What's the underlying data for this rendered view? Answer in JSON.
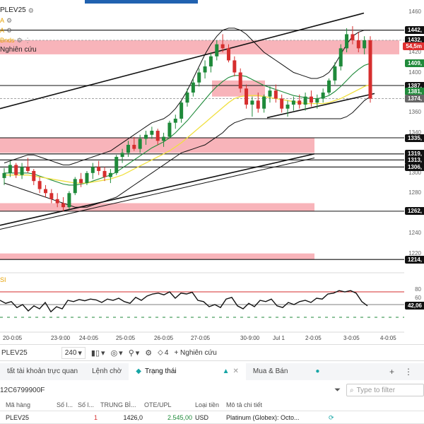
{
  "legend": {
    "symbol_line": "PLEV25",
    "line2": "A",
    "line3": "A",
    "line4": "Bnds",
    "research": "Nghiên cứu"
  },
  "price_axis": {
    "ticks": [
      "1460",
      "1440",
      "1420",
      "1400",
      "1380",
      "1360",
      "1340",
      "1320",
      "1300",
      "1280",
      "1260",
      "1240",
      "1220"
    ],
    "tags": [
      {
        "text": "1442,",
        "color": "#111111"
      },
      {
        "text": "1432,",
        "color": "#111111"
      },
      {
        "text": "54,5m",
        "color": "#e03030"
      },
      {
        "text": "1409,",
        "color": "#1f8a3a"
      },
      {
        "text": "1387,",
        "color": "#111111"
      },
      {
        "text": "1381,",
        "color": "#1f8a3a"
      },
      {
        "text": "1374,",
        "color": "#666666"
      },
      {
        "text": "1335,",
        "color": "#111111"
      },
      {
        "text": "1319,",
        "color": "#111111"
      },
      {
        "text": "1313,",
        "color": "#111111"
      },
      {
        "text": "1306,",
        "color": "#111111"
      },
      {
        "text": "1262,",
        "color": "#111111"
      },
      {
        "text": "1214,",
        "color": "#111111"
      }
    ]
  },
  "oscillator": {
    "label": "SI",
    "ticks": [
      "80",
      "60",
      "40"
    ],
    "current_tag": "42,06",
    "upper_level": 75,
    "lower_level": 25,
    "values": [
      55,
      48,
      52,
      38,
      45,
      30,
      42,
      35,
      50,
      28,
      40,
      35,
      55,
      52,
      57,
      54,
      58,
      56,
      50,
      58,
      55,
      60,
      52,
      48,
      62,
      55,
      65,
      70,
      72,
      68,
      75,
      60,
      72,
      70,
      74,
      55,
      52,
      40,
      45,
      38,
      58,
      62,
      42,
      35,
      48,
      40,
      55,
      52,
      58,
      42,
      38,
      50,
      45,
      52,
      55,
      50,
      60,
      58,
      70,
      72,
      78,
      75,
      78,
      72,
      52,
      42
    ]
  },
  "time_axis": [
    "20-0:05",
    "23-9:00",
    "24-0:05",
    "25-0:05",
    "26-0:05",
    "27-0:05",
    "30-9:00",
    "Jul 1",
    "2-0:05",
    "3-0:05",
    "4-0:05"
  ],
  "chart_data": {
    "type": "candlestick",
    "symbol": "PLEV25",
    "timeframe": "240",
    "ylim": [
      1205,
      1465
    ],
    "candles": [
      [
        1295,
        1305,
        1288,
        1300
      ],
      [
        1300,
        1312,
        1296,
        1308
      ],
      [
        1308,
        1310,
        1295,
        1298
      ],
      [
        1298,
        1310,
        1294,
        1306
      ],
      [
        1306,
        1315,
        1300,
        1302
      ],
      [
        1302,
        1304,
        1288,
        1292
      ],
      [
        1292,
        1296,
        1280,
        1284
      ],
      [
        1284,
        1288,
        1276,
        1280
      ],
      [
        1280,
        1284,
        1270,
        1274
      ],
      [
        1274,
        1280,
        1266,
        1270
      ],
      [
        1270,
        1276,
        1262,
        1266
      ],
      [
        1266,
        1282,
        1264,
        1280
      ],
      [
        1280,
        1296,
        1278,
        1294
      ],
      [
        1294,
        1300,
        1286,
        1290
      ],
      [
        1290,
        1302,
        1288,
        1300
      ],
      [
        1300,
        1310,
        1294,
        1306
      ],
      [
        1306,
        1312,
        1298,
        1302
      ],
      [
        1302,
        1306,
        1292,
        1296
      ],
      [
        1296,
        1304,
        1290,
        1300
      ],
      [
        1300,
        1318,
        1298,
        1316
      ],
      [
        1316,
        1324,
        1310,
        1320
      ],
      [
        1320,
        1332,
        1316,
        1328
      ],
      [
        1328,
        1336,
        1322,
        1324
      ],
      [
        1324,
        1338,
        1320,
        1334
      ],
      [
        1334,
        1342,
        1328,
        1338
      ],
      [
        1338,
        1346,
        1334,
        1342
      ],
      [
        1342,
        1344,
        1328,
        1332
      ],
      [
        1332,
        1340,
        1326,
        1336
      ],
      [
        1336,
        1352,
        1334,
        1350
      ],
      [
        1350,
        1358,
        1344,
        1354
      ],
      [
        1354,
        1372,
        1350,
        1370
      ],
      [
        1370,
        1384,
        1366,
        1380
      ],
      [
        1380,
        1394,
        1376,
        1390
      ],
      [
        1390,
        1404,
        1386,
        1400
      ],
      [
        1400,
        1412,
        1394,
        1406
      ],
      [
        1406,
        1420,
        1400,
        1416
      ],
      [
        1416,
        1432,
        1412,
        1428
      ],
      [
        1428,
        1438,
        1420,
        1424
      ],
      [
        1424,
        1428,
        1410,
        1412
      ],
      [
        1412,
        1416,
        1396,
        1400
      ],
      [
        1400,
        1404,
        1380,
        1384
      ],
      [
        1384,
        1388,
        1364,
        1368
      ],
      [
        1368,
        1376,
        1356,
        1372
      ],
      [
        1372,
        1380,
        1360,
        1364
      ],
      [
        1364,
        1378,
        1360,
        1376
      ],
      [
        1376,
        1386,
        1370,
        1382
      ],
      [
        1382,
        1388,
        1370,
        1374
      ],
      [
        1374,
        1378,
        1360,
        1364
      ],
      [
        1364,
        1372,
        1356,
        1368
      ],
      [
        1368,
        1376,
        1362,
        1372
      ],
      [
        1372,
        1378,
        1364,
        1368
      ],
      [
        1368,
        1380,
        1362,
        1376
      ],
      [
        1376,
        1382,
        1366,
        1370
      ],
      [
        1370,
        1378,
        1364,
        1374
      ],
      [
        1374,
        1384,
        1370,
        1380
      ],
      [
        1380,
        1394,
        1378,
        1392
      ],
      [
        1392,
        1410,
        1388,
        1406
      ],
      [
        1406,
        1428,
        1402,
        1424
      ],
      [
        1424,
        1444,
        1420,
        1438
      ],
      [
        1438,
        1446,
        1428,
        1432
      ],
      [
        1432,
        1440,
        1420,
        1424
      ],
      [
        1424,
        1436,
        1418,
        1432
      ],
      [
        1432,
        1436,
        1370,
        1374
      ]
    ],
    "bollinger": {
      "upper": [
        1310,
        1312,
        1314,
        1316,
        1318,
        1318,
        1316,
        1314,
        1312,
        1310,
        1308,
        1308,
        1310,
        1312,
        1314,
        1316,
        1318,
        1320,
        1322,
        1326,
        1330,
        1334,
        1338,
        1342,
        1346,
        1350,
        1352,
        1354,
        1358,
        1364,
        1372,
        1382,
        1394,
        1406,
        1418,
        1428,
        1436,
        1442,
        1444,
        1444,
        1442,
        1438,
        1432,
        1426,
        1420,
        1416,
        1412,
        1408,
        1404,
        1400,
        1398,
        1396,
        1394,
        1394,
        1396,
        1400,
        1408,
        1418,
        1428,
        1436,
        1440,
        1442,
        1442
      ],
      "middle": [
        1300,
        1300,
        1300,
        1300,
        1300,
        1299,
        1297,
        1295,
        1293,
        1291,
        1289,
        1288,
        1288,
        1289,
        1290,
        1292,
        1294,
        1296,
        1298,
        1301,
        1305,
        1309,
        1313,
        1317,
        1321,
        1325,
        1328,
        1331,
        1335,
        1340,
        1346,
        1352,
        1359,
        1366,
        1373,
        1380,
        1386,
        1391,
        1395,
        1397,
        1397,
        1396,
        1393,
        1390,
        1387,
        1385,
        1383,
        1381,
        1379,
        1377,
        1376,
        1375,
        1374,
        1374,
        1375,
        1377,
        1381,
        1386,
        1392,
        1398,
        1403,
        1407,
        1409
      ],
      "lower": [
        1290,
        1288,
        1286,
        1284,
        1282,
        1280,
        1278,
        1276,
        1274,
        1272,
        1270,
        1268,
        1266,
        1266,
        1266,
        1268,
        1270,
        1272,
        1274,
        1276,
        1280,
        1284,
        1288,
        1292,
        1296,
        1300,
        1304,
        1308,
        1312,
        1316,
        1320,
        1322,
        1324,
        1326,
        1328,
        1332,
        1336,
        1340,
        1346,
        1350,
        1352,
        1354,
        1354,
        1354,
        1354,
        1354,
        1354,
        1354,
        1354,
        1354,
        1354,
        1354,
        1354,
        1354,
        1354,
        1354,
        1354,
        1354,
        1356,
        1360,
        1366,
        1372,
        1376
      ],
      "signal": [
        1298,
        1298,
        1298,
        1298,
        1298,
        1297,
        1296,
        1295,
        1294,
        1293,
        1292,
        1291,
        1290,
        1290,
        1290,
        1291,
        1292,
        1293,
        1294,
        1296,
        1298,
        1301,
        1304,
        1307,
        1310,
        1313,
        1316,
        1319,
        1322,
        1326,
        1330,
        1335,
        1340,
        1345,
        1350,
        1355,
        1360,
        1365,
        1370,
        1374,
        1376,
        1377,
        1377,
        1377,
        1376,
        1375,
        1374,
        1373,
        1372,
        1371,
        1370,
        1369,
        1369,
        1369,
        1369,
        1370,
        1372,
        1374,
        1377,
        1380,
        1383,
        1386,
        1388
      ]
    },
    "horizontal_levels": [
      1442,
      1432,
      1387,
      1374,
      1335,
      1319,
      1313,
      1306,
      1262,
      1214
    ],
    "zones": [
      {
        "from": 1418,
        "to": 1432
      },
      {
        "from": 1376,
        "to": 1392
      },
      {
        "from": 1320,
        "to": 1335
      },
      {
        "from": 1262,
        "to": 1270
      },
      {
        "from": 1214,
        "to": 1220
      }
    ],
    "colors": {
      "up": "#1f8a3a",
      "down": "#d62e2e",
      "zone": "#f7a7ae",
      "signal": "#f0e040"
    }
  },
  "toolbar": {
    "symbol": "PLEV25",
    "interval": "240",
    "count": "4",
    "research": "+ Nghiên cứu"
  },
  "tabs": {
    "items": [
      "tất tài khoản trực quan",
      "Lệnh chờ",
      "Trạng thái",
      "Mua & Bán"
    ]
  },
  "filterbar": {
    "account": "12C6799900F",
    "placeholder": "Type to filter"
  },
  "grid": {
    "headers": [
      "Mã hàng",
      "Số l...",
      "Số l...",
      "TRUNG BÌ...",
      "OTE/UPL",
      "Loại tiền",
      "Mô tả chi tiết"
    ],
    "row": [
      "PLEV25",
      "",
      "1",
      "1426,0",
      "2.545,00",
      "USD",
      "Platinum (Globex): Octo..."
    ]
  }
}
